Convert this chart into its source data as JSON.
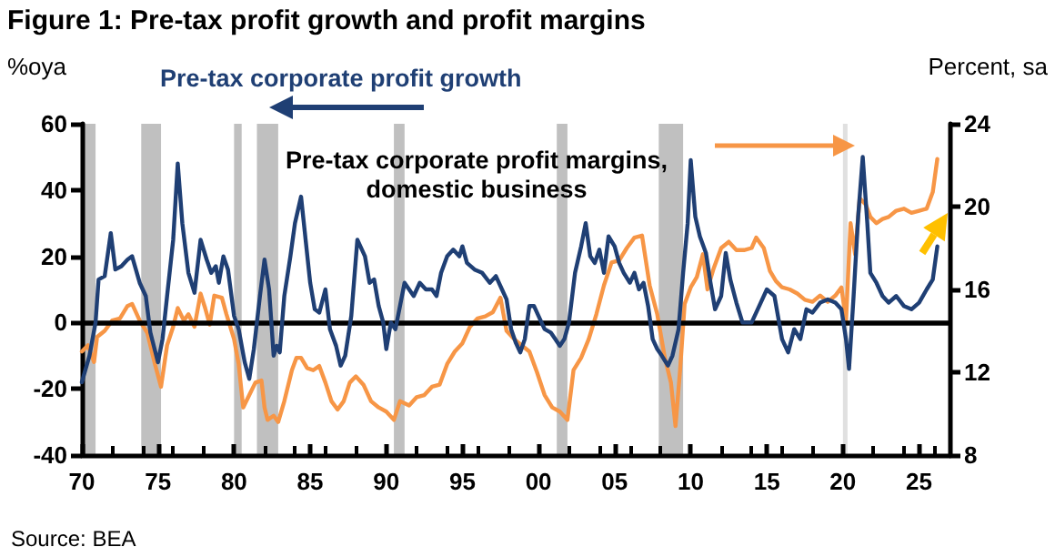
{
  "chart_data": {
    "type": "line",
    "title": "Figure 1: Pre-tax profit growth and profit margins",
    "ylabel": "%oya",
    "y2label": "Percent, sa",
    "annotations": [
      "Source: BEA"
    ],
    "x": [
      1970.0,
      1970.5,
      1970.9,
      1971.1,
      1971.5,
      1971.9,
      1972.2,
      1972.6,
      1973.0,
      1973.3,
      1973.8,
      1974.2,
      1974.5,
      1975.0,
      1975.3,
      1975.6,
      1976.0,
      1976.3,
      1976.6,
      1977.0,
      1977.4,
      1977.8,
      1978.2,
      1978.5,
      1978.8,
      1979.0,
      1979.3,
      1979.6,
      1980.0,
      1980.3,
      1980.7,
      1981.0,
      1981.3,
      1981.7,
      1982.0,
      1982.3,
      1982.6,
      1982.8,
      1983.0,
      1983.3,
      1983.7,
      1984.0,
      1984.4,
      1984.7,
      1985.0,
      1985.3,
      1985.6,
      1986.0,
      1986.3,
      1986.7,
      1987.0,
      1987.3,
      1987.7,
      1988.1,
      1988.6,
      1988.9,
      1989.2,
      1989.5,
      1989.8,
      1990.0,
      1990.3,
      1990.6,
      1990.9,
      1991.2,
      1991.5,
      1991.8,
      1992.2,
      1992.6,
      1993.0,
      1993.3,
      1993.6,
      1994.0,
      1994.4,
      1994.8,
      1995.0,
      1995.3,
      1995.8,
      1996.3,
      1996.8,
      1997.2,
      1997.6,
      1997.9,
      1998.2,
      1998.5,
      1998.8,
      1999.1,
      1999.4,
      1999.7,
      2000.0,
      2000.4,
      2000.8,
      2001.1,
      2001.4,
      2001.7,
      2002.0,
      2002.4,
      2002.8,
      2003.1,
      2003.4,
      2003.7,
      2004.0,
      2004.3,
      2004.6,
      2005.0,
      2005.3,
      2005.6,
      2006.0,
      2006.3,
      2006.6,
      2006.9,
      2007.2,
      2007.5,
      2007.8,
      2008.1,
      2008.5,
      2008.8,
      2009.2,
      2009.5,
      2009.8,
      2010.0,
      2010.3,
      2010.6,
      2011.0,
      2011.3,
      2011.6,
      2012.0,
      2012.3,
      2012.6,
      2013.0,
      2013.4,
      2014.0,
      2014.4,
      2015.0,
      2015.5,
      2016.0,
      2016.4,
      2016.8,
      2017.2,
      2017.6,
      2018.0,
      2018.5,
      2019.0,
      2019.5,
      2019.9,
      2020.2,
      2020.4,
      2020.7,
      2021.0,
      2021.3,
      2021.6,
      2021.8,
      2022.2,
      2022.6,
      2023.0,
      2023.5,
      2024.0,
      2024.5,
      2025.0,
      2025.5,
      2025.9,
      2026.2
    ],
    "series": [
      {
        "name": "Pre-tax corporate profit growth",
        "color": "#1f3f74",
        "values": [
          -18,
          -10,
          0,
          13,
          14,
          27,
          16,
          17,
          19,
          20,
          12,
          8,
          -3,
          -12,
          -5,
          8,
          25,
          48,
          30,
          15,
          9,
          25,
          19,
          15,
          17,
          12,
          20,
          16,
          2,
          -2,
          -12,
          -17,
          -8,
          8,
          19,
          10,
          -10,
          -7,
          -9,
          8,
          20,
          30,
          38,
          25,
          12,
          4,
          3,
          10,
          -2,
          -7,
          -13,
          -10,
          2,
          25,
          20,
          12,
          13,
          5,
          0,
          -8,
          0,
          -2,
          5,
          12,
          10,
          8,
          12,
          10,
          10,
          8,
          15,
          20,
          22,
          20,
          23,
          18,
          16,
          15,
          12,
          14,
          10,
          7,
          -2,
          -6,
          -9,
          -5,
          5,
          5,
          2,
          -2,
          -3,
          -5,
          -7,
          -5,
          0,
          15,
          23,
          30,
          20,
          18,
          22,
          15,
          26,
          23,
          18,
          15,
          12,
          15,
          10,
          12,
          5,
          -5,
          -8,
          -10,
          -13,
          -10,
          -2,
          15,
          30,
          49,
          32,
          26,
          21,
          12,
          4,
          8,
          21,
          13,
          6,
          0,
          0,
          4,
          10,
          8,
          -5,
          -9,
          -2,
          -5,
          4,
          3,
          6,
          7,
          6,
          4,
          -5,
          -14,
          8,
          32,
          50,
          30,
          15,
          12,
          8,
          6,
          8,
          5,
          4,
          6,
          10,
          13,
          23
        ]
      },
      {
        "name": "Pre-tax corporate profit margins,\ndomestic business",
        "color": "#f79646",
        "axis": "y2",
        "x": [
          1970.0,
          1970.4,
          1970.8,
          1971.0,
          1971.5,
          1972.0,
          1972.5,
          1973.0,
          1973.3,
          1973.8,
          1974.3,
          1974.8,
          1975.2,
          1975.6,
          1976.0,
          1976.3,
          1976.7,
          1977.0,
          1977.4,
          1977.8,
          1978.1,
          1978.4,
          1978.7,
          1979.2,
          1979.5,
          1980.0,
          1980.3,
          1980.6,
          1981.0,
          1981.4,
          1981.8,
          1982.0,
          1982.2,
          1982.6,
          1982.9,
          1983.3,
          1983.8,
          1984.1,
          1984.4,
          1984.8,
          1985.2,
          1985.6,
          1986.0,
          1986.4,
          1986.8,
          1987.2,
          1987.6,
          1988.0,
          1988.5,
          1989.0,
          1989.5,
          1990.0,
          1990.5,
          1990.9,
          1991.5,
          1992.0,
          1992.5,
          1993.0,
          1993.5,
          1994.0,
          1994.5,
          1995.0,
          1995.5,
          1996.0,
          1996.5,
          1997.0,
          1997.5,
          1997.9,
          1998.4,
          1998.9,
          1999.4,
          1999.9,
          2000.4,
          2000.9,
          2001.4,
          2001.9,
          2002.3,
          2002.8,
          2003.3,
          2003.8,
          2004.3,
          2004.8,
          2005.3,
          2005.8,
          2006.3,
          2006.8,
          2007.3,
          2007.8,
          2008.3,
          2008.7,
          2009.0,
          2009.3,
          2009.6,
          2010.0,
          2010.4,
          2010.8,
          2011.1,
          2011.5,
          2012.0,
          2012.5,
          2013.0,
          2013.5,
          2014.0,
          2014.3,
          2014.8,
          2015.2,
          2015.6,
          2016.0,
          2016.5,
          2017.0,
          2017.5,
          2018.0,
          2018.5,
          2019.0,
          2019.5,
          2019.9,
          2020.2,
          2020.5,
          2020.8,
          2021.1,
          2021.5,
          2021.8,
          2022.2,
          2022.6,
          2023.0,
          2023.5,
          2024.0,
          2024.5,
          2025.0,
          2025.5,
          2025.9,
          2026.2
        ],
        "values": [
          13.0,
          13.3,
          12.5,
          13.7,
          14.0,
          14.5,
          14.6,
          15.2,
          15.3,
          14.5,
          13.9,
          12.4,
          11.3,
          13.3,
          14.2,
          15.1,
          14.5,
          14.8,
          14.2,
          15.8,
          15.1,
          14.3,
          15.7,
          15.6,
          14.8,
          13.6,
          12.4,
          10.3,
          10.9,
          11.5,
          11.6,
          10.3,
          9.7,
          9.9,
          9.6,
          10.6,
          12.1,
          12.7,
          12.7,
          12.2,
          12.1,
          12.3,
          11.5,
          10.6,
          10.2,
          10.6,
          11.5,
          11.8,
          11.4,
          10.6,
          10.3,
          10.1,
          9.7,
          10.6,
          10.4,
          10.8,
          10.9,
          11.3,
          11.4,
          12.4,
          13.0,
          13.4,
          14.2,
          14.6,
          14.7,
          14.9,
          15.6,
          14.0,
          13.6,
          13.3,
          13.0,
          12.0,
          10.9,
          10.3,
          10.1,
          9.7,
          12.1,
          12.7,
          13.6,
          14.8,
          16.2,
          17.3,
          17.4,
          18.0,
          18.5,
          18.6,
          16.2,
          14.8,
          12.7,
          11.5,
          9.4,
          12.1,
          15.3,
          16.1,
          16.6,
          17.7,
          16.0,
          17.0,
          18.0,
          18.3,
          17.9,
          17.9,
          18.0,
          18.5,
          18.0,
          16.9,
          16.4,
          16.1,
          16.0,
          15.8,
          15.5,
          15.4,
          15.7,
          15.4,
          15.7,
          16.1,
          14.5,
          19.2,
          17.7,
          20.4,
          20.1,
          19.5,
          19.2,
          19.4,
          19.5,
          19.8,
          19.9,
          19.7,
          19.8,
          19.9,
          20.7,
          22.3
        ]
      }
    ],
    "xlim": [
      1970,
      2027
    ],
    "xticks": [
      {
        "value": 1970,
        "label": "70"
      },
      {
        "value": 1975,
        "label": "75"
      },
      {
        "value": 1980,
        "label": "80"
      },
      {
        "value": 1985,
        "label": "85"
      },
      {
        "value": 1990,
        "label": "90"
      },
      {
        "value": 1995,
        "label": "95"
      },
      {
        "value": 2000,
        "label": "00"
      },
      {
        "value": 2005,
        "label": "05"
      },
      {
        "value": 2010,
        "label": "10"
      },
      {
        "value": 2015,
        "label": "15"
      },
      {
        "value": 2020,
        "label": "20"
      },
      {
        "value": 2025,
        "label": "25"
      }
    ],
    "ylim": [
      -40,
      60
    ],
    "yticks": [
      -40,
      -20,
      0,
      20,
      40,
      60
    ],
    "y2lim": [
      8,
      24
    ],
    "y2ticks": [
      8,
      12,
      16,
      20,
      24
    ],
    "bands": [
      {
        "axis": "x",
        "from": 1970.0,
        "to": 1970.9,
        "color": "#c0c0c0"
      },
      {
        "axis": "x",
        "from": 1973.9,
        "to": 1975.2,
        "color": "#c0c0c0"
      },
      {
        "axis": "x",
        "from": 1980.0,
        "to": 1980.5,
        "color": "#c0c0c0"
      },
      {
        "axis": "x",
        "from": 1981.5,
        "to": 1982.9,
        "color": "#c0c0c0"
      },
      {
        "axis": "x",
        "from": 1990.5,
        "to": 1991.2,
        "color": "#c0c0c0"
      },
      {
        "axis": "x",
        "from": 2001.2,
        "to": 2001.9,
        "color": "#c0c0c0"
      },
      {
        "axis": "x",
        "from": 2007.9,
        "to": 2009.5,
        "color": "#c0c0c0"
      },
      {
        "axis": "x",
        "from": 2020.0,
        "to": 2020.3,
        "color": "#e0e0e0"
      }
    ],
    "ref_lines": [
      {
        "axis": "y",
        "value": 0,
        "color": "#000000"
      }
    ],
    "grid": false,
    "legend": "top",
    "marker": "none",
    "line_style": "solid"
  }
}
